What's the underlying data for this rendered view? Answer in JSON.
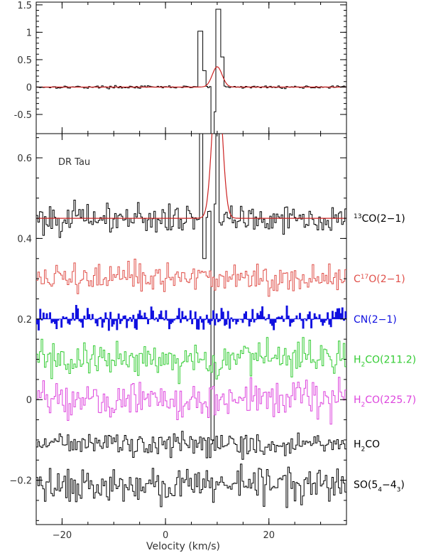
{
  "chart_data": [
    {
      "type": "line",
      "style": "step",
      "panel": "top",
      "ylim": [
        -0.85,
        1.55
      ],
      "xlim": [
        -25,
        35
      ],
      "yticks": [
        "1.5",
        "1",
        "0.5",
        "0",
        "-0.5"
      ],
      "ytick_values": [
        1.5,
        1,
        0.5,
        0,
        -0.5
      ],
      "series": [
        {
          "color": "#000000",
          "kind": "spectrum",
          "noise": 0.022,
          "features": [
            [
              6.8,
              1.02,
              0.55
            ],
            [
              7.6,
              0.3,
              0.3
            ],
            [
              9.2,
              -0.88,
              0.5
            ],
            [
              9.8,
              -0.45,
              0.4
            ],
            [
              10.1,
              1.42,
              0.6
            ],
            [
              11.0,
              0.55,
              0.5
            ]
          ]
        },
        {
          "color": "#cc2222",
          "kind": "gaussian-fit",
          "center": 10.0,
          "amplitude": 0.37,
          "width": 0.95
        }
      ]
    },
    {
      "type": "line",
      "style": "step",
      "panel": "bottom",
      "ylim": [
        -0.31,
        0.66
      ],
      "xlim": [
        -25,
        35
      ],
      "xlabel": "Velocity (km/s)",
      "xticks": [
        "−20",
        "0",
        "20"
      ],
      "xtick_values": [
        -20,
        0,
        20
      ],
      "yticks": [
        "0.6",
        "0.4",
        "0.2",
        "0",
        "−0.2"
      ],
      "ytick_values": [
        0.6,
        0.4,
        0.2,
        0,
        -0.2
      ],
      "annotation": "DR Tau",
      "series": [
        {
          "name": "13CO(2-1)",
          "label_sup": "13",
          "label_main": "CO(2−1)",
          "offset": 0.45,
          "amp": 0.035,
          "color": "#000000",
          "features": [
            [
              6.8,
              0.6,
              0.4
            ],
            [
              7.6,
              -0.1,
              0.3
            ],
            [
              9.1,
              -0.55,
              0.5
            ],
            [
              10.1,
              0.8,
              0.5
            ]
          ]
        },
        {
          "name": "C17O(2-1)",
          "label_pre": "C",
          "label_sup": "17",
          "label_main": "O(2−1)",
          "offset": 0.3,
          "amp": 0.035,
          "color": "#e0504a"
        },
        {
          "name": "CN(2-1)",
          "label_main": "CN(2−1)",
          "offset": 0.2,
          "amp": 0.03,
          "color": "#1010e0",
          "filled": true
        },
        {
          "name": "H2CO(211.2)",
          "label_pre": "H",
          "label_sub": "2",
          "label_main": "CO(211.2)",
          "offset": 0.1,
          "amp": 0.04,
          "color": "#33cc33"
        },
        {
          "name": "H2CO(225.7)",
          "label_pre": "H",
          "label_sub": "2",
          "label_main": "CO(225.7)",
          "offset": 0.0,
          "amp": 0.04,
          "color": "#dd44dd"
        },
        {
          "name": "H2CO",
          "label_pre": "H",
          "label_sub": "2",
          "label_main": "CO",
          "offset": -0.11,
          "amp": 0.025,
          "color": "#000000"
        },
        {
          "name": "SO(54-43)",
          "label_pre": "SO(5",
          "label_sub": "4",
          "label_mid": "−4",
          "label_sub2": "3",
          "label_main": ")",
          "offset": -0.21,
          "amp": 0.038,
          "color": "#000000"
        }
      ],
      "fit": {
        "color": "#cc2222",
        "center": 10.0,
        "amplitude": 0.37,
        "width": 0.95,
        "offset": 0.45
      }
    }
  ]
}
